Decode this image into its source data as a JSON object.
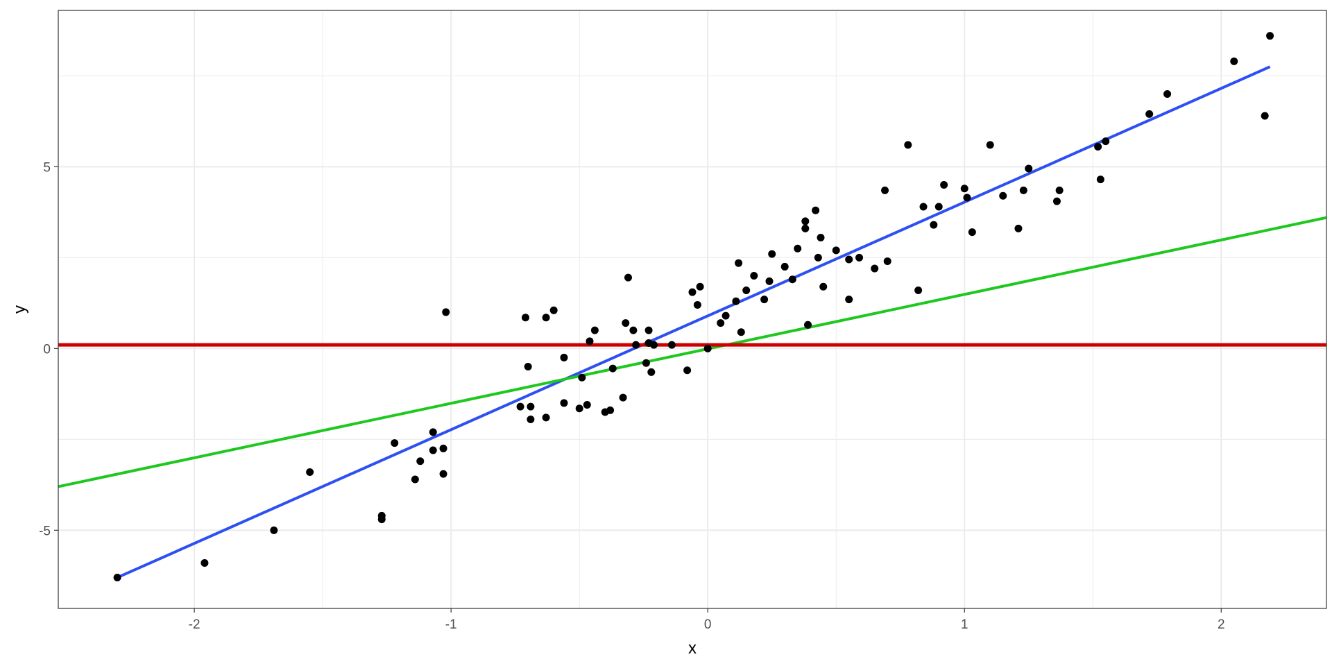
{
  "chart_data": {
    "type": "scatter",
    "title": "",
    "xlabel": "x",
    "ylabel": "y",
    "xlim": [
      -2.53,
      2.41
    ],
    "ylim": [
      -7.15,
      9.3
    ],
    "x_ticks": [
      -2,
      -1,
      0,
      1,
      2
    ],
    "x_tick_labels": [
      "-2",
      "-1",
      "0",
      "1",
      "2"
    ],
    "y_ticks": [
      -5,
      0,
      5
    ],
    "y_tick_labels": [
      "-5",
      "0",
      "5"
    ],
    "x_minor_breaks": [
      -1.5,
      -0.5,
      0.5,
      1.5
    ],
    "y_minor_breaks": [
      -2.5,
      2.5,
      7.5
    ],
    "grid": true,
    "legend": "none",
    "colors": {
      "points": "#000000",
      "fit_line": "#2e4ff2",
      "green_line": "#1ec81e",
      "red_line": "#cc0000",
      "grid": "#ebebeb",
      "panel_border": "#333333"
    },
    "points": [
      [
        -2.3,
        -6.3
      ],
      [
        -1.96,
        -5.9
      ],
      [
        -1.69,
        -5.0
      ],
      [
        -1.55,
        -3.4
      ],
      [
        -1.27,
        -4.6
      ],
      [
        -1.27,
        -4.7
      ],
      [
        -1.22,
        -2.6
      ],
      [
        -1.14,
        -3.6
      ],
      [
        -1.12,
        -3.1
      ],
      [
        -1.07,
        -2.8
      ],
      [
        -1.07,
        -2.3
      ],
      [
        -1.03,
        -3.45
      ],
      [
        -1.03,
        -2.75
      ],
      [
        -1.02,
        1.0
      ],
      [
        -0.73,
        -1.6
      ],
      [
        -0.71,
        0.85
      ],
      [
        -0.7,
        -0.5
      ],
      [
        -0.69,
        -1.6
      ],
      [
        -0.69,
        -1.95
      ],
      [
        -0.63,
        0.85
      ],
      [
        -0.63,
        -1.9
      ],
      [
        -0.6,
        1.05
      ],
      [
        -0.56,
        -1.5
      ],
      [
        -0.56,
        -0.25
      ],
      [
        -0.5,
        -1.65
      ],
      [
        -0.49,
        -0.8
      ],
      [
        -0.47,
        -1.55
      ],
      [
        -0.46,
        0.2
      ],
      [
        -0.44,
        0.5
      ],
      [
        -0.4,
        -1.75
      ],
      [
        -0.38,
        -1.7
      ],
      [
        -0.37,
        -0.55
      ],
      [
        -0.33,
        -1.35
      ],
      [
        -0.32,
        0.7
      ],
      [
        -0.31,
        1.95
      ],
      [
        -0.29,
        0.5
      ],
      [
        -0.28,
        0.1
      ],
      [
        -0.24,
        -0.4
      ],
      [
        -0.23,
        0.5
      ],
      [
        -0.23,
        0.15
      ],
      [
        -0.22,
        -0.65
      ],
      [
        -0.21,
        0.1
      ],
      [
        -0.14,
        0.1
      ],
      [
        -0.08,
        -0.6
      ],
      [
        -0.06,
        1.55
      ],
      [
        -0.04,
        1.2
      ],
      [
        -0.03,
        1.7
      ],
      [
        0.0,
        0.0
      ],
      [
        0.05,
        0.7
      ],
      [
        0.07,
        0.9
      ],
      [
        0.11,
        1.3
      ],
      [
        0.12,
        2.35
      ],
      [
        0.13,
        0.45
      ],
      [
        0.15,
        1.6
      ],
      [
        0.18,
        2.0
      ],
      [
        0.22,
        1.35
      ],
      [
        0.24,
        1.85
      ],
      [
        0.25,
        2.6
      ],
      [
        0.3,
        2.25
      ],
      [
        0.33,
        1.9
      ],
      [
        0.35,
        2.75
      ],
      [
        0.38,
        3.3
      ],
      [
        0.38,
        3.5
      ],
      [
        0.39,
        0.65
      ],
      [
        0.42,
        3.8
      ],
      [
        0.43,
        2.5
      ],
      [
        0.44,
        3.05
      ],
      [
        0.45,
        1.7
      ],
      [
        0.5,
        2.7
      ],
      [
        0.55,
        2.45
      ],
      [
        0.55,
        1.35
      ],
      [
        0.59,
        2.5
      ],
      [
        0.65,
        2.2
      ],
      [
        0.69,
        4.35
      ],
      [
        0.7,
        2.4
      ],
      [
        0.78,
        5.6
      ],
      [
        0.82,
        1.6
      ],
      [
        0.84,
        3.9
      ],
      [
        0.88,
        3.4
      ],
      [
        0.9,
        3.9
      ],
      [
        0.92,
        4.5
      ],
      [
        1.0,
        4.4
      ],
      [
        1.01,
        4.15
      ],
      [
        1.03,
        3.2
      ],
      [
        1.1,
        5.6
      ],
      [
        1.15,
        4.2
      ],
      [
        1.21,
        3.3
      ],
      [
        1.23,
        4.35
      ],
      [
        1.25,
        4.95
      ],
      [
        1.36,
        4.05
      ],
      [
        1.37,
        4.35
      ],
      [
        1.52,
        5.55
      ],
      [
        1.53,
        4.65
      ],
      [
        1.55,
        5.7
      ],
      [
        1.72,
        6.45
      ],
      [
        1.79,
        7.0
      ],
      [
        2.05,
        7.9
      ],
      [
        2.17,
        6.4
      ],
      [
        2.19,
        8.6
      ]
    ],
    "lines": [
      {
        "color": "blue",
        "x": [
          -2.3,
          2.19
        ],
        "y": [
          -6.3,
          7.75
        ]
      },
      {
        "color": "green",
        "x": [
          -2.53,
          2.41
        ],
        "y": [
          -3.8,
          3.6
        ]
      },
      {
        "color": "red",
        "x": [
          -2.53,
          2.41
        ],
        "y": [
          0.1,
          0.1
        ]
      }
    ]
  }
}
